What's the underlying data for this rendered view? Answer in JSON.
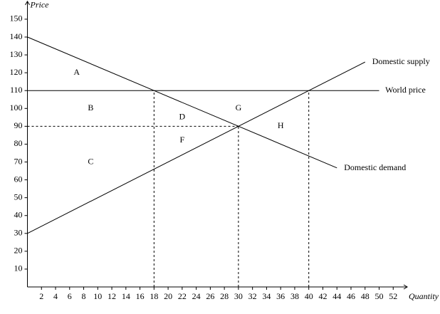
{
  "chart_data": {
    "type": "line",
    "x_label": "Quantity",
    "y_label": "Price",
    "xlim": [
      0,
      54
    ],
    "ylim": [
      0,
      160
    ],
    "xticks": [
      2,
      4,
      6,
      8,
      10,
      12,
      14,
      16,
      18,
      20,
      22,
      24,
      26,
      28,
      30,
      32,
      34,
      36,
      38,
      40,
      42,
      44,
      46,
      48,
      50,
      52
    ],
    "yticks": [
      10,
      20,
      30,
      40,
      50,
      60,
      70,
      80,
      90,
      100,
      110,
      120,
      130,
      140,
      150
    ],
    "color": "#000000",
    "series": [
      {
        "name": "Domestic supply",
        "x": [
          0,
          48
        ],
        "values": [
          30,
          126
        ]
      },
      {
        "name": "Domestic demand",
        "x": [
          0,
          44
        ],
        "values": [
          140,
          66.7
        ]
      },
      {
        "name": "World price",
        "x": [
          0,
          50
        ],
        "values": [
          110,
          110
        ],
        "wrap": true
      },
      {
        "x": [
          0,
          30
        ],
        "values": [
          90,
          90
        ],
        "dashed": true
      },
      {
        "x": [
          18,
          18
        ],
        "values": [
          0,
          110
        ],
        "dashed": true
      },
      {
        "x": [
          30,
          30
        ],
        "values": [
          0,
          90
        ],
        "dashed": true
      },
      {
        "x": [
          40,
          40
        ],
        "values": [
          0,
          110
        ],
        "dashed": true
      }
    ],
    "annotations": [
      {
        "text": "A",
        "x": 7,
        "y": 120
      },
      {
        "text": "B",
        "x": 9,
        "y": 100
      },
      {
        "text": "C",
        "x": 9,
        "y": 70
      },
      {
        "text": "D",
        "x": 22,
        "y": 95
      },
      {
        "text": "F",
        "x": 22,
        "y": 82
      },
      {
        "text": "G",
        "x": 30,
        "y": 100
      },
      {
        "text": "H",
        "x": 36,
        "y": 90
      }
    ]
  }
}
